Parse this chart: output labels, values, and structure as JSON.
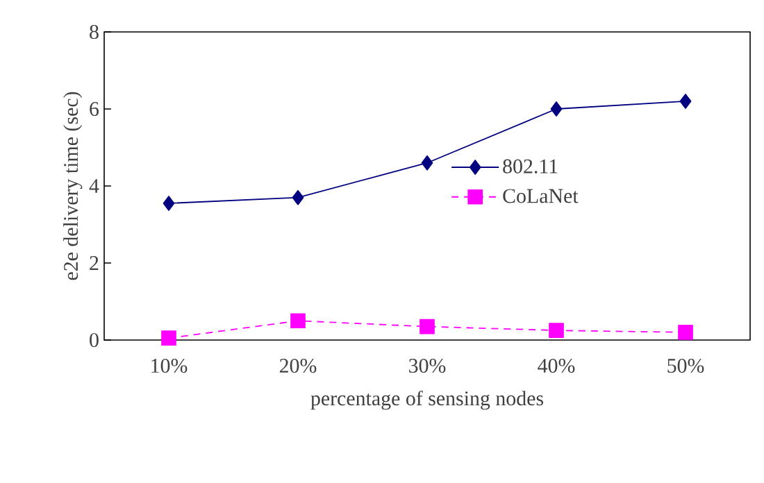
{
  "chart_data": {
    "type": "line",
    "xlabel": "percentage of sensing nodes",
    "ylabel": "e2e delivery time (sec)",
    "categories": [
      "10%",
      "20%",
      "30%",
      "40%",
      "50%"
    ],
    "series": [
      {
        "name": "802.11",
        "color": "#000080",
        "values": [
          3.55,
          3.7,
          4.6,
          6.0,
          6.2
        ],
        "marker": "diamond",
        "line_style": "solid"
      },
      {
        "name": "CoLaNet",
        "color": "#ff00ff",
        "values": [
          0.05,
          0.5,
          0.35,
          0.25,
          0.2
        ],
        "marker": "square",
        "line_style": "dashed"
      }
    ],
    "ylim": [
      0,
      8
    ],
    "yticks": [
      0,
      2,
      4,
      6,
      8
    ],
    "grid": false,
    "legend": "right"
  }
}
